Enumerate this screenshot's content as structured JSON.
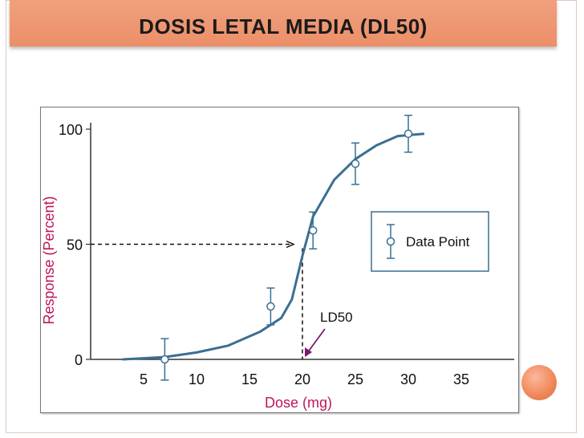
{
  "slide": {
    "title": "DOSIS LETAL MEDIA  (DL50)"
  },
  "colors": {
    "title_bar": "#ee9470",
    "curve": "#3b6f92",
    "error_bar": "#3b6f92",
    "annotation_arrow": "#7a1a6e"
  },
  "chart_data": {
    "type": "line",
    "xlabel": "Dose (mg)",
    "ylabel": "Response (Percent)",
    "xlim": [
      0,
      40
    ],
    "ylim": [
      0,
      100
    ],
    "x_ticks": [
      5,
      10,
      15,
      20,
      25,
      30,
      35
    ],
    "y_ticks": [
      0,
      50,
      100
    ],
    "legend": {
      "label": "Data Point",
      "placement": "right"
    },
    "curve": {
      "x": [
        3,
        7,
        10,
        13,
        16,
        18,
        19,
        20,
        21,
        22,
        23,
        25,
        27,
        29,
        31.5
      ],
      "y": [
        0,
        1,
        3,
        6,
        12,
        18,
        26,
        45,
        62,
        70,
        78,
        87,
        93,
        97,
        98
      ]
    },
    "points": [
      {
        "x": 7,
        "y": 0,
        "err": 9
      },
      {
        "x": 17,
        "y": 23,
        "err": 8
      },
      {
        "x": 21,
        "y": 56,
        "err": 8
      },
      {
        "x": 25,
        "y": 85,
        "err": 9
      },
      {
        "x": 30,
        "y": 98,
        "err": 8
      }
    ],
    "ld50": {
      "label": "LD50",
      "x": 20,
      "y": 50
    }
  }
}
